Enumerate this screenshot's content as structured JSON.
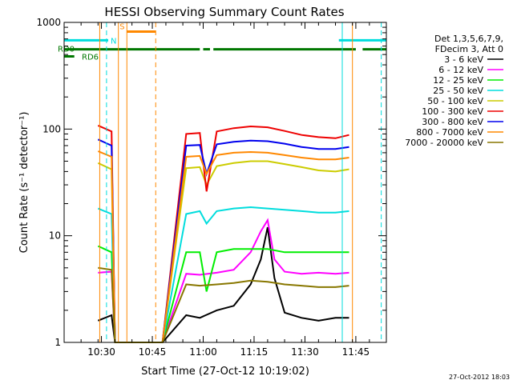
{
  "chart_data": {
    "type": "line",
    "title": "HESSI Observing Summary Count Rates",
    "xlabel": "Start Time (27-Oct-12 10:19:02)",
    "ylabel": "Count Rate (s⁻¹ detector⁻¹)",
    "y_scale": "log",
    "ylim": [
      1,
      1000
    ],
    "xlim": [
      0,
      95
    ],
    "x_units": "minutes since 10:19:02",
    "x_ticks": [
      {
        "x": 11,
        "label": "10:30"
      },
      {
        "x": 26,
        "label": "10:45"
      },
      {
        "x": 41,
        "label": "11:00"
      },
      {
        "x": 56,
        "label": "11:15"
      },
      {
        "x": 71,
        "label": "11:30"
      },
      {
        "x": 86,
        "label": "11:45"
      }
    ],
    "y_ticks": [
      {
        "y": 1,
        "label": "1"
      },
      {
        "y": 10,
        "label": "10"
      },
      {
        "y": 100,
        "label": "100"
      },
      {
        "y": 1000,
        "label": "1000"
      }
    ],
    "legend": {
      "placement": "right",
      "header": [
        "Det 1,3,5,6,7,9,",
        "FDecim 3, Att 0"
      ]
    },
    "series": [
      {
        "name": "3 - 6 keV",
        "color": "#000000",
        "x": [
          10,
          14,
          15,
          29,
          36,
          40,
          45,
          50,
          55,
          58,
          60,
          62,
          65,
          70,
          75,
          80,
          84
        ],
        "values": [
          1.6,
          1.8,
          1.0,
          1.0,
          1.8,
          1.7,
          2.0,
          2.2,
          3.5,
          6.0,
          12.0,
          4.0,
          1.9,
          1.7,
          1.6,
          1.7,
          1.7
        ]
      },
      {
        "name": "6 - 12 keV",
        "color": "#ff00ff",
        "x": [
          10,
          14,
          15,
          29,
          36,
          40,
          45,
          50,
          55,
          58,
          60,
          62,
          65,
          70,
          75,
          80,
          84
        ],
        "values": [
          4.5,
          4.6,
          1.0,
          1.0,
          4.4,
          4.3,
          4.5,
          4.8,
          7.0,
          11.0,
          14.0,
          6.0,
          4.6,
          4.4,
          4.5,
          4.4,
          4.5
        ]
      },
      {
        "name": "12 - 25 keV",
        "color": "#00ee00",
        "x": [
          10,
          14,
          15,
          29,
          36,
          40,
          42,
          45,
          50,
          55,
          60,
          65,
          70,
          75,
          80,
          84
        ],
        "values": [
          8.0,
          7.0,
          1.0,
          1.0,
          7.0,
          7.0,
          3.0,
          7.0,
          7.5,
          7.5,
          7.5,
          7.0,
          7.0,
          7.0,
          7.0,
          7.0
        ]
      },
      {
        "name": "25 - 50 keV",
        "color": "#00dddd",
        "x": [
          10,
          14,
          15,
          29,
          36,
          40,
          42,
          45,
          50,
          55,
          60,
          65,
          70,
          75,
          80,
          84
        ],
        "values": [
          18,
          16,
          1.0,
          1.0,
          16,
          17,
          13,
          17,
          18,
          18.5,
          18,
          17.5,
          17,
          16.5,
          16.5,
          17
        ]
      },
      {
        "name": "50 - 100 keV",
        "color": "#cccc00",
        "x": [
          10,
          14,
          15,
          29,
          36,
          40,
          42,
          45,
          50,
          55,
          60,
          65,
          70,
          75,
          80,
          84
        ],
        "values": [
          48,
          42,
          1.0,
          1.0,
          43,
          44,
          30,
          45,
          48,
          50,
          50,
          47,
          44,
          41,
          40,
          42
        ]
      },
      {
        "name": "100 - 300 keV",
        "color": "#ee0000",
        "x": [
          10,
          14,
          15,
          29,
          36,
          40,
          42,
          45,
          50,
          55,
          60,
          65,
          70,
          75,
          80,
          84
        ],
        "values": [
          108,
          95,
          1.0,
          1.0,
          90,
          92,
          26,
          95,
          102,
          106,
          104,
          96,
          88,
          84,
          82,
          88
        ]
      },
      {
        "name": "300 - 800 keV",
        "color": "#0000ee",
        "x": [
          10,
          14,
          15,
          29,
          36,
          40,
          42,
          45,
          50,
          55,
          60,
          65,
          70,
          75,
          80,
          84
        ],
        "values": [
          80,
          70,
          1.0,
          1.0,
          70,
          71,
          38,
          72,
          76,
          78,
          77,
          73,
          68,
          65,
          65,
          68
        ]
      },
      {
        "name": "800 - 7000 keV",
        "color": "#ff8800",
        "x": [
          10,
          14,
          15,
          29,
          36,
          40,
          42,
          45,
          50,
          55,
          60,
          65,
          70,
          75,
          80,
          84
        ],
        "values": [
          62,
          55,
          1.0,
          1.0,
          55,
          56,
          38,
          57,
          60,
          61,
          60,
          57,
          54,
          52,
          52,
          54
        ]
      },
      {
        "name": "7000 - 20000 keV",
        "color": "#887700",
        "x": [
          10,
          14,
          15,
          29,
          36,
          40,
          45,
          50,
          55,
          60,
          65,
          70,
          75,
          80,
          84
        ],
        "values": [
          5.0,
          4.8,
          1.0,
          1.0,
          3.5,
          3.4,
          3.5,
          3.6,
          3.8,
          3.7,
          3.5,
          3.4,
          3.3,
          3.3,
          3.4
        ]
      }
    ],
    "vlines": [
      {
        "x": 12.5,
        "color": "#00dddd",
        "style": "dashed"
      },
      {
        "x": 10.5,
        "color": "#ff8800",
        "style": "solid"
      },
      {
        "x": 16.0,
        "color": "#ff8800",
        "style": "solid"
      },
      {
        "x": 18.5,
        "color": "#ff8800",
        "style": "solid"
      },
      {
        "x": 27.0,
        "color": "#ff8800",
        "style": "dashed"
      },
      {
        "x": 82.0,
        "color": "#00dddd",
        "style": "solid"
      },
      {
        "x": 85.0,
        "color": "#ff8800",
        "style": "solid"
      },
      {
        "x": 93.5,
        "color": "#00dddd",
        "style": "dashed"
      }
    ],
    "flags": [
      {
        "label": "N",
        "color": "#00dddd",
        "y": 680,
        "segments": [
          [
            0,
            13
          ],
          [
            81,
            95
          ]
        ]
      },
      {
        "label": "S",
        "color": "#ff8800",
        "y": 820,
        "segments": [
          [
            18.5,
            27
          ]
        ]
      },
      {
        "label": "RD0",
        "color": "#007700",
        "y": 560,
        "segments": [
          [
            0,
            40
          ],
          [
            41,
            43
          ],
          [
            44,
            86
          ],
          [
            88,
            95
          ]
        ]
      },
      {
        "label": "RD6",
        "color": "#007700",
        "y": 480,
        "segments": [
          [
            0,
            3
          ]
        ]
      }
    ]
  },
  "timestamp": "27-Oct-2012 18:03"
}
